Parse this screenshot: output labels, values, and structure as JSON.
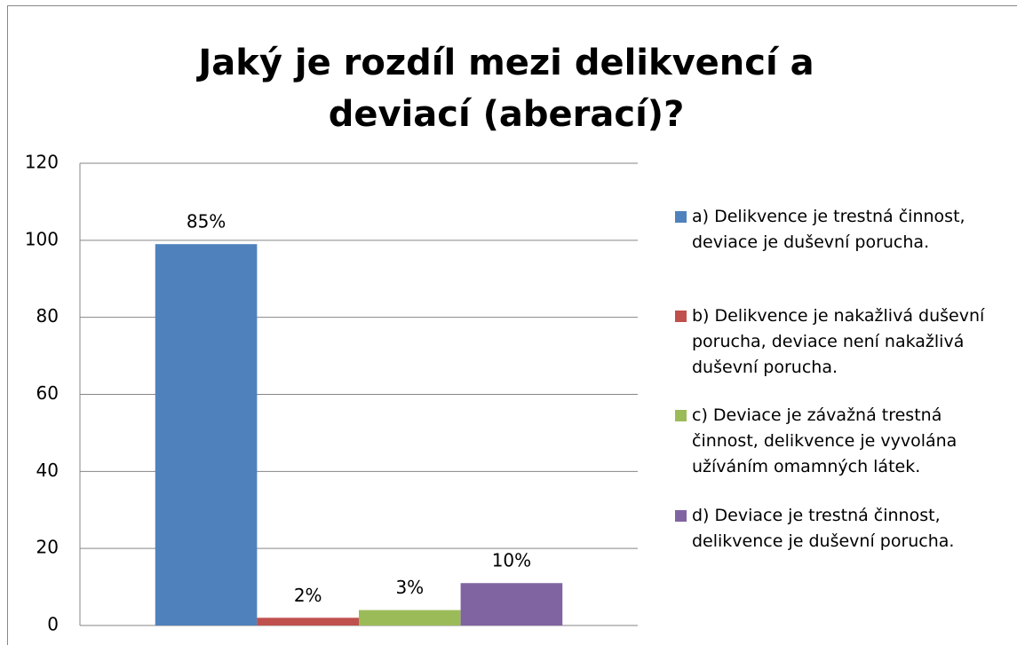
{
  "chart_data": {
    "type": "bar",
    "title": "Jaký je rozdíl mezi delikvencí a deviací (aberací)?",
    "categories": [
      null
    ],
    "series": [
      {
        "name": "a) Delikvence je trestná činnost, deviace je duševní porucha.",
        "color": "#4f81bd",
        "values": [
          99
        ],
        "value_labels": [
          "85%"
        ]
      },
      {
        "name": "b) Delikvence je nakažlivá duševní porucha, deviace není nakažlivá duševní porucha.",
        "color": "#c0504d",
        "values": [
          2
        ],
        "value_labels": [
          "2%"
        ]
      },
      {
        "name": "c) Deviace je závažná trestná činnost, delikvence je vyvolána užíváním omamných látek.",
        "color": "#9bbb59",
        "values": [
          4
        ],
        "value_labels": [
          "3%"
        ]
      },
      {
        "name": "d) Deviace je trestná činnost, delikvence je duševní porucha.",
        "color": "#8064a2",
        "values": [
          11
        ],
        "value_labels": [
          "10%"
        ]
      }
    ],
    "ylim": [
      0,
      120
    ],
    "yticks": [
      0,
      20,
      40,
      60,
      80,
      100,
      120
    ],
    "grid": true,
    "legend": "right"
  }
}
